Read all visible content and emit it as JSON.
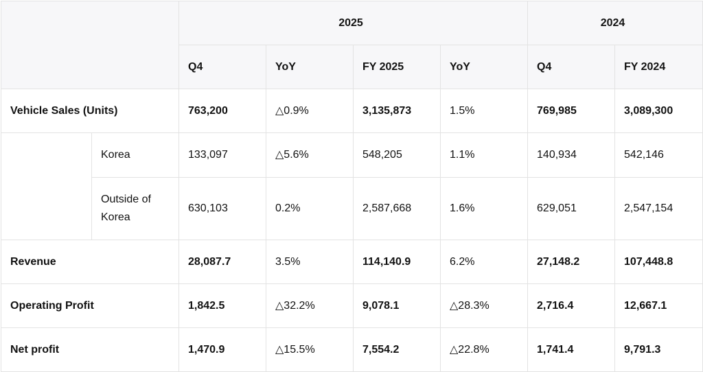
{
  "header": {
    "groups": [
      "2025",
      "2024"
    ],
    "columns": [
      "Q4",
      "YoY",
      "FY 2025",
      "YoY",
      "Q4",
      "FY 2024"
    ]
  },
  "rows": [
    {
      "label": "Vehicle Sales (Units)",
      "cells": [
        "763,200",
        "△0.9%",
        "3,135,873",
        "1.5%",
        "769,985",
        "3,089,300"
      ],
      "sub_rows": [
        {
          "label": "Korea",
          "cells": [
            "133,097",
            "△5.6%",
            "548,205",
            "1.1%",
            "140,934",
            "542,146"
          ]
        },
        {
          "label": "Outside of Korea",
          "cells": [
            "630,103",
            "0.2%",
            "2,587,668",
            "1.6%",
            "629,051",
            "2,547,154"
          ]
        }
      ]
    },
    {
      "label": "Revenue",
      "cells": [
        "28,087.7",
        "3.5%",
        "114,140.9",
        "6.2%",
        "27,148.2",
        "107,448.8"
      ]
    },
    {
      "label": "Operating Profit",
      "cells": [
        "1,842.5",
        "△32.2%",
        "9,078.1",
        "△28.3%",
        "2,716.4",
        "12,667.1"
      ]
    },
    {
      "label": "Net profit",
      "cells": [
        "1,470.9",
        "△15.5%",
        "7,554.2",
        "△22.8%",
        "1,741.4",
        "9,791.3"
      ]
    }
  ]
}
